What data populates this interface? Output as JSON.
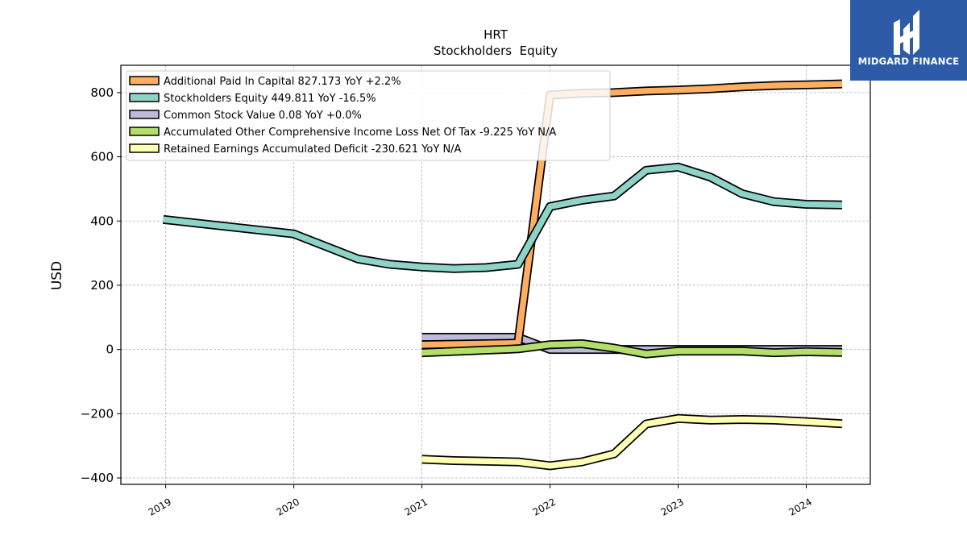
{
  "chart_data": {
    "type": "line",
    "title": "HRT",
    "subtitle": "Stockholders  Equity",
    "ylabel": "USD",
    "xlabel": "",
    "ylim": [
      -420,
      885
    ],
    "xlim": [
      2018.65,
      2024.5
    ],
    "yticks": [
      -400,
      -200,
      0,
      200,
      400,
      600,
      800
    ],
    "xticks": [
      "2019",
      "2020",
      "2021",
      "2022",
      "2023",
      "2024"
    ],
    "grid": true,
    "legend_position": "top-left",
    "series": [
      {
        "name": "Additional Paid In Capital  827.173 YoY +2.2%",
        "color": "#fdae61",
        "x": [
          2021.0,
          2021.75,
          2022.0,
          2022.25,
          2022.5,
          2022.75,
          2023.0,
          2023.25,
          2023.5,
          2023.75,
          2024.0,
          2024.28
        ],
        "values": [
          15,
          20,
          793,
          798,
          800,
          805,
          808,
          812,
          818,
          822,
          824,
          827
        ]
      },
      {
        "name": "Stockholders Equity  449.811 YoY -16.5%",
        "color": "#8dd3c7",
        "x": [
          2018.98,
          2020.0,
          2020.5,
          2020.75,
          2021.0,
          2021.25,
          2021.5,
          2021.75,
          2022.0,
          2022.25,
          2022.5,
          2022.75,
          2023.0,
          2023.25,
          2023.5,
          2023.75,
          2024.0,
          2024.28
        ],
        "values": [
          405,
          360,
          282,
          265,
          257,
          252,
          255,
          265,
          445,
          465,
          478,
          558,
          568,
          537,
          485,
          460,
          452,
          450
        ]
      },
      {
        "name": "Common Stock Value  0.08 YoY +0.0%",
        "color": "#bebada",
        "x": [
          2021.0,
          2021.75,
          2022.0,
          2022.5,
          2023.0,
          2023.5,
          2024.0,
          2024.28
        ],
        "values": [
          38,
          38,
          0,
          0,
          0,
          0,
          0,
          0.08
        ]
      },
      {
        "name": "Accumulated Other Comprehensive Income Loss Net Of Tax  -9.225 YoY N/A",
        "color": "#b3de69",
        "x": [
          2021.0,
          2021.25,
          2021.5,
          2021.75,
          2022.0,
          2022.25,
          2022.5,
          2022.75,
          2023.0,
          2023.25,
          2023.5,
          2023.75,
          2024.0,
          2024.28
        ],
        "values": [
          -10,
          -6,
          -2,
          2,
          15,
          18,
          4,
          -14,
          -5,
          -5,
          -5,
          -10,
          -7,
          -9.2
        ]
      },
      {
        "name": "Retained Earnings Accumulated Deficit  -230.621 YoY N/A",
        "color": "#ffffb3",
        "x": [
          2021.0,
          2021.25,
          2021.5,
          2021.75,
          2022.0,
          2022.25,
          2022.5,
          2022.75,
          2023.0,
          2023.25,
          2023.5,
          2023.75,
          2024.0,
          2024.28
        ],
        "values": [
          -342,
          -346,
          -348,
          -350,
          -362,
          -350,
          -325,
          -232,
          -215,
          -220,
          -218,
          -220,
          -225,
          -231
        ]
      }
    ]
  },
  "logo": {
    "brand": "MIDGARD FINANCE",
    "background": "#2d5ba8"
  }
}
